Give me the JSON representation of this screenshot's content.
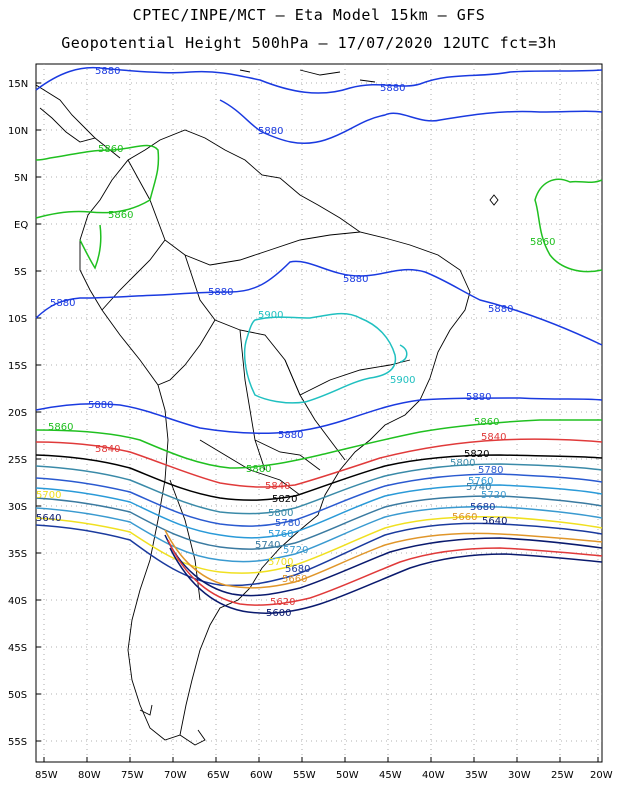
{
  "header": {
    "line1": "CPTEC/INPE/MCT –  Eta Model 15km – GFS",
    "line2": "Geopotential Height 500hPa – 17/07/2020 12UTC fct=3h"
  },
  "axes": {
    "lat_labels": [
      "15N",
      "10N",
      "5N",
      "EQ",
      "5S",
      "10S",
      "15S",
      "20S",
      "25S",
      "30S",
      "35S",
      "40S",
      "45S",
      "50S",
      "55S"
    ],
    "lon_labels": [
      "85W",
      "80W",
      "75W",
      "70W",
      "65W",
      "60W",
      "55W",
      "50W",
      "45W",
      "40W",
      "35W",
      "30W",
      "25W",
      "20W"
    ]
  },
  "colors": {
    "c5600": "#0a1a6e",
    "c5620": "#e03a3a",
    "c5640": "#0a1a6e",
    "c5660": "#e0962a",
    "c5680": "#1a3a9e",
    "c5700": "#f0e020",
    "c5720": "#3a9ad0",
    "c5740": "#3a7aa0",
    "c5760": "#2a9ad8",
    "c5780": "#2a5ad0",
    "c5800": "#3a8aa8",
    "c5820": "#000000",
    "c5840": "#e03a3a",
    "c5860": "#20c020",
    "c5880": "#1a3ae0",
    "c5900": "#20c0c0"
  },
  "contour_labels": {
    "l5880a": "5880",
    "l5880b": "5880",
    "l5880c": "5880",
    "l5880d": "5880",
    "l5880e": "5880",
    "l5880f": "5880",
    "l5880g": "5880",
    "l5880h": "5880",
    "l5880i": "5880",
    "l5880j": "5880",
    "l5860a": "5860",
    "l5860b": "5860",
    "l5860c": "5860",
    "l5860d": "5860",
    "l5860e": "5860",
    "l5860f": "5860",
    "l5900a": "5900",
    "l5900b": "5900",
    "l5840a": "5840",
    "l5840b": "5840",
    "l5840c": "5840",
    "l5820a": "5820",
    "l5820b": "5820",
    "l5800a": "5800",
    "l5800b": "5800",
    "l5780a": "5780",
    "l5780b": "5780",
    "l5760a": "5760",
    "l5760b": "5760",
    "l5740a": "5740",
    "l5740b": "5740",
    "l5720a": "5720",
    "l5720b": "5720",
    "l5700a": "5700",
    "l5700b": "5700",
    "l5680a": "5680",
    "l5680b": "5680",
    "l5660a": "5660",
    "l5660b": "5660",
    "l5640a": "5640",
    "l5640b": "5640",
    "l5620a": "5620",
    "l5600a": "5600"
  }
}
